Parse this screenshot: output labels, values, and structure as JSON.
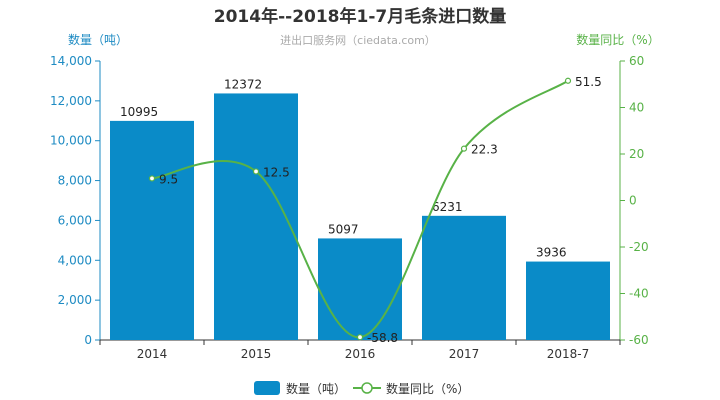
{
  "chart_data": {
    "type": "bar",
    "title": "2014年--2018年1-7月毛条进口数量",
    "subtitle": "进出口服务网（ciedata.com）",
    "categories": [
      "2014",
      "2015",
      "2016",
      "2017",
      "2018-7"
    ],
    "series": [
      {
        "name": "数量（吨）",
        "type": "bar",
        "axis": "left",
        "color": "#0a8bc8",
        "values": [
          10995,
          12372,
          5097,
          6231,
          3936
        ]
      },
      {
        "name": "数量同比（%）",
        "type": "line",
        "axis": "right",
        "color": "#58b247",
        "values": [
          9.5,
          12.5,
          -58.8,
          22.3,
          51.5
        ]
      }
    ],
    "y_left": {
      "label": "数量（吨）",
      "range": [
        0,
        14000
      ],
      "ticks": [
        "0",
        "2,000",
        "4,000",
        "6,000",
        "8,000",
        "10,000",
        "12,000",
        "14,000"
      ],
      "color": "#1e8bc3"
    },
    "y_right": {
      "label": "数量同比（%）",
      "range": [
        -60,
        60
      ],
      "ticks": [
        "-60",
        "-40",
        "-20",
        "0",
        "20",
        "40",
        "60"
      ],
      "color": "#58b247"
    },
    "grid": false,
    "legend": "bottom-center"
  }
}
